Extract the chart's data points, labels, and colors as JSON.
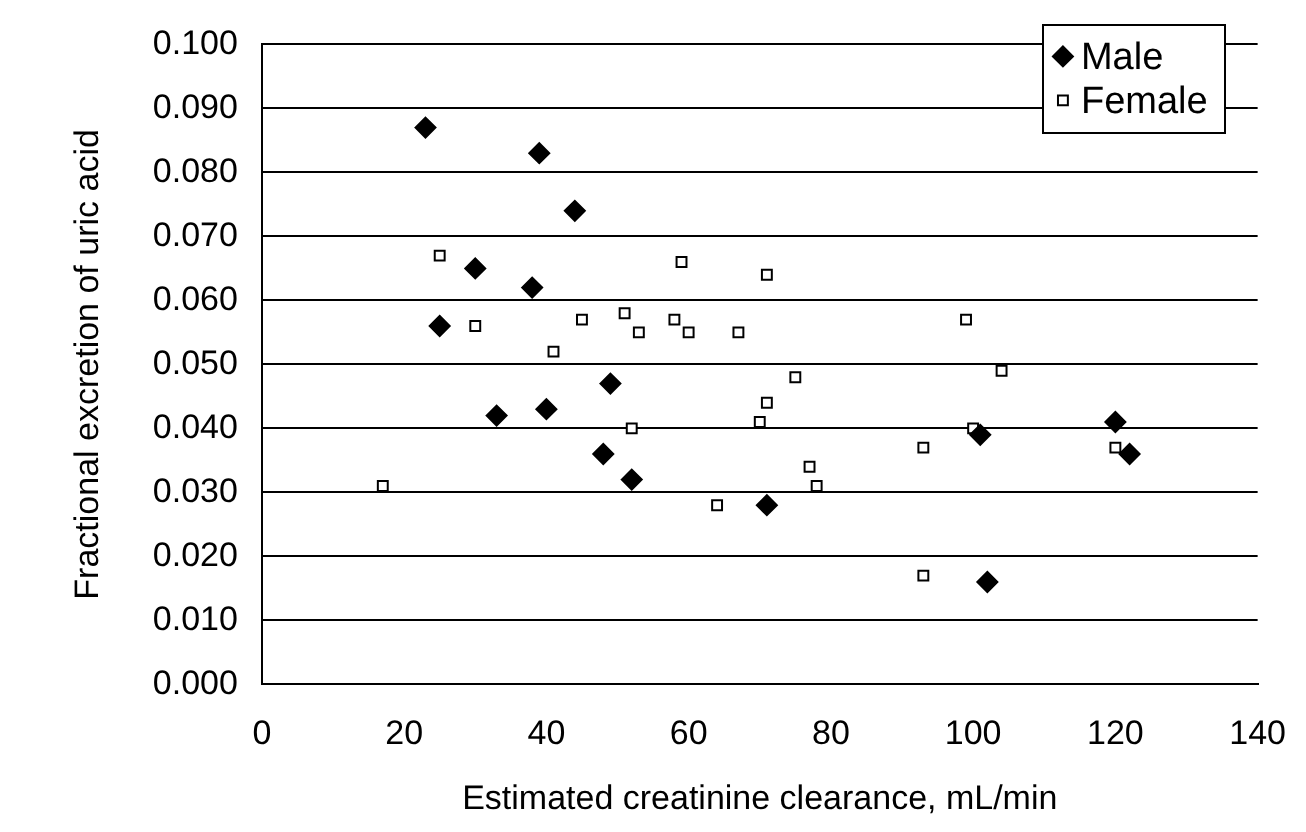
{
  "chart_data": {
    "type": "scatter",
    "xlabel": "Estimated creatinine clearance, mL/min",
    "ylabel": "Fractional excretion of uric acid",
    "xlim": [
      0,
      140
    ],
    "xticks": [
      0,
      20,
      40,
      60,
      80,
      100,
      120,
      140
    ],
    "ylim": [
      0,
      0.1
    ],
    "yticks": [
      {
        "value": 0,
        "label": "0.000"
      },
      {
        "value": 0.01,
        "label": "0.010"
      },
      {
        "value": 0.02,
        "label": "0.020"
      },
      {
        "value": 0.03,
        "label": "0.030"
      },
      {
        "value": 0.04,
        "label": "0.040"
      },
      {
        "value": 0.05,
        "label": "0.050"
      },
      {
        "value": 0.06,
        "label": "0.060"
      },
      {
        "value": 0.07,
        "label": "0.070"
      },
      {
        "value": 0.08,
        "label": "0.080"
      },
      {
        "value": 0.09,
        "label": "0.090"
      },
      {
        "value": 0.1,
        "label": "0.100"
      }
    ],
    "grid": "y",
    "legend": "top right",
    "series": [
      {
        "name": "Male",
        "color": "#000000",
        "marker": "diamond",
        "x": [
          23,
          39,
          44,
          30,
          38,
          25,
          33,
          40,
          49,
          48,
          52,
          71,
          101,
          102,
          120,
          122
        ],
        "values": [
          0.087,
          0.083,
          0.074,
          0.065,
          0.062,
          0.056,
          0.042,
          0.043,
          0.047,
          0.036,
          0.032,
          0.028,
          0.039,
          0.016,
          0.041,
          0.036
        ]
      },
      {
        "name": "Female",
        "color": "#000000",
        "marker": "square",
        "x": [
          25,
          59,
          30,
          45,
          51,
          53,
          58,
          60,
          67,
          71,
          41,
          52,
          17,
          64,
          70,
          71,
          75,
          77,
          78,
          93,
          93,
          99,
          100,
          104,
          120
        ],
        "values": [
          0.067,
          0.066,
          0.056,
          0.057,
          0.058,
          0.055,
          0.057,
          0.055,
          0.055,
          0.064,
          0.052,
          0.04,
          0.031,
          0.028,
          0.041,
          0.044,
          0.048,
          0.034,
          0.031,
          0.037,
          0.017,
          0.057,
          0.04,
          0.049,
          0.037
        ]
      }
    ]
  }
}
